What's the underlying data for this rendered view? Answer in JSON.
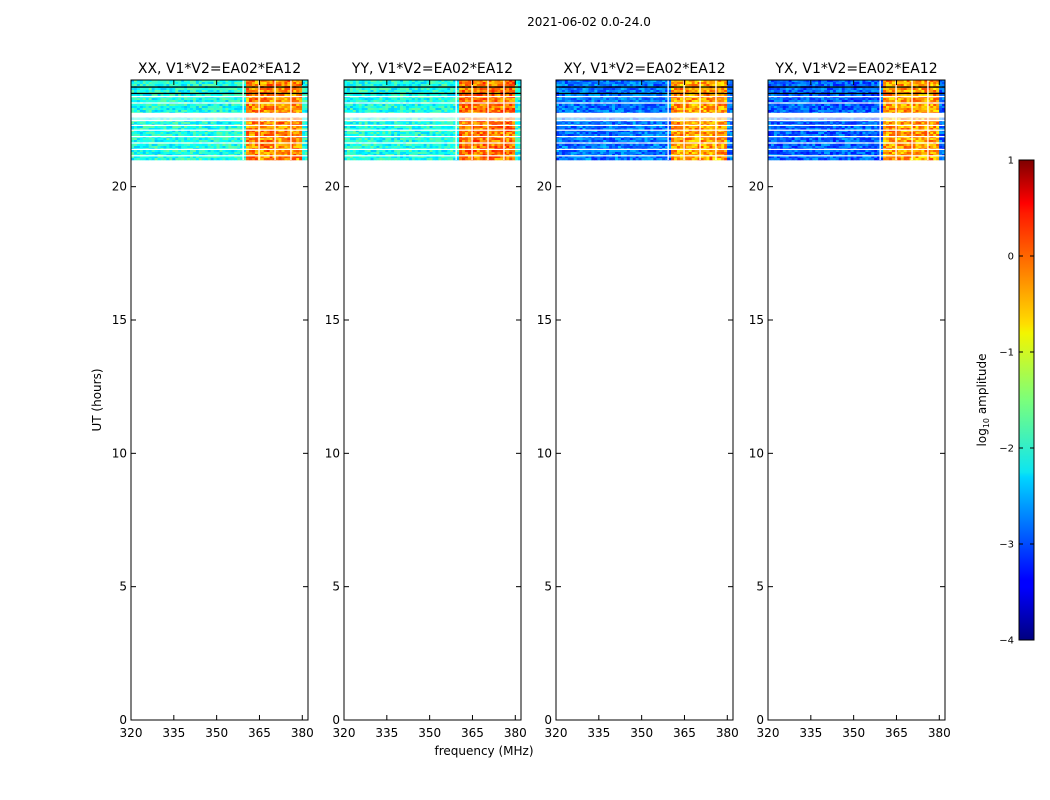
{
  "figure": {
    "suptitle": "2021-06-02 0.0-24.0",
    "xlabel": "frequency (MHz)",
    "ylabel": "UT (hours)"
  },
  "colorbar": {
    "label_prefix": "log",
    "label_sub": "10",
    "label_suffix": " amplitude",
    "range": [
      -4,
      1
    ],
    "ticks": [
      1,
      0,
      -1,
      -2,
      -3,
      -4
    ],
    "tick_labels": [
      "1",
      "0",
      "−1",
      "−2",
      "−3",
      "−4"
    ],
    "colormap": "jet"
  },
  "chart_data": [
    {
      "type": "heatmap",
      "title": "XX, V1*V2=EA02*EA12",
      "xlim": [
        320,
        382
      ],
      "ylim": [
        0,
        24
      ],
      "xticks": [
        320,
        335,
        350,
        365,
        380
      ],
      "yticks": [
        0,
        5,
        10,
        15,
        20
      ],
      "data_hours": [
        21,
        24
      ],
      "base_log_amp": -2.0,
      "rfi_band_mhz": [
        360,
        380
      ],
      "rfi_log_amp": -0.3
    },
    {
      "type": "heatmap",
      "title": "YY, V1*V2=EA02*EA12",
      "xlim": [
        320,
        382
      ],
      "ylim": [
        0,
        24
      ],
      "xticks": [
        320,
        335,
        350,
        365,
        380
      ],
      "yticks": [
        0,
        5,
        10,
        15,
        20
      ],
      "data_hours": [
        21,
        24
      ],
      "base_log_amp": -2.0,
      "rfi_band_mhz": [
        360,
        380
      ],
      "rfi_log_amp": -0.2
    },
    {
      "type": "heatmap",
      "title": "XY, V1*V2=EA02*EA12",
      "xlim": [
        320,
        382
      ],
      "ylim": [
        0,
        24
      ],
      "xticks": [
        320,
        335,
        350,
        365,
        380
      ],
      "yticks": [
        0,
        5,
        10,
        15,
        20
      ],
      "data_hours": [
        21,
        24
      ],
      "base_log_amp": -2.8,
      "rfi_band_mhz": [
        360,
        380
      ],
      "rfi_log_amp": -0.4
    },
    {
      "type": "heatmap",
      "title": "YX, V1*V2=EA02*EA12",
      "xlim": [
        320,
        382
      ],
      "ylim": [
        0,
        24
      ],
      "xticks": [
        320,
        335,
        350,
        365,
        380
      ],
      "yticks": [
        0,
        5,
        10,
        15,
        20
      ],
      "data_hours": [
        21,
        24
      ],
      "base_log_amp": -2.9,
      "rfi_band_mhz": [
        360,
        380
      ],
      "rfi_log_amp": -0.4
    }
  ]
}
